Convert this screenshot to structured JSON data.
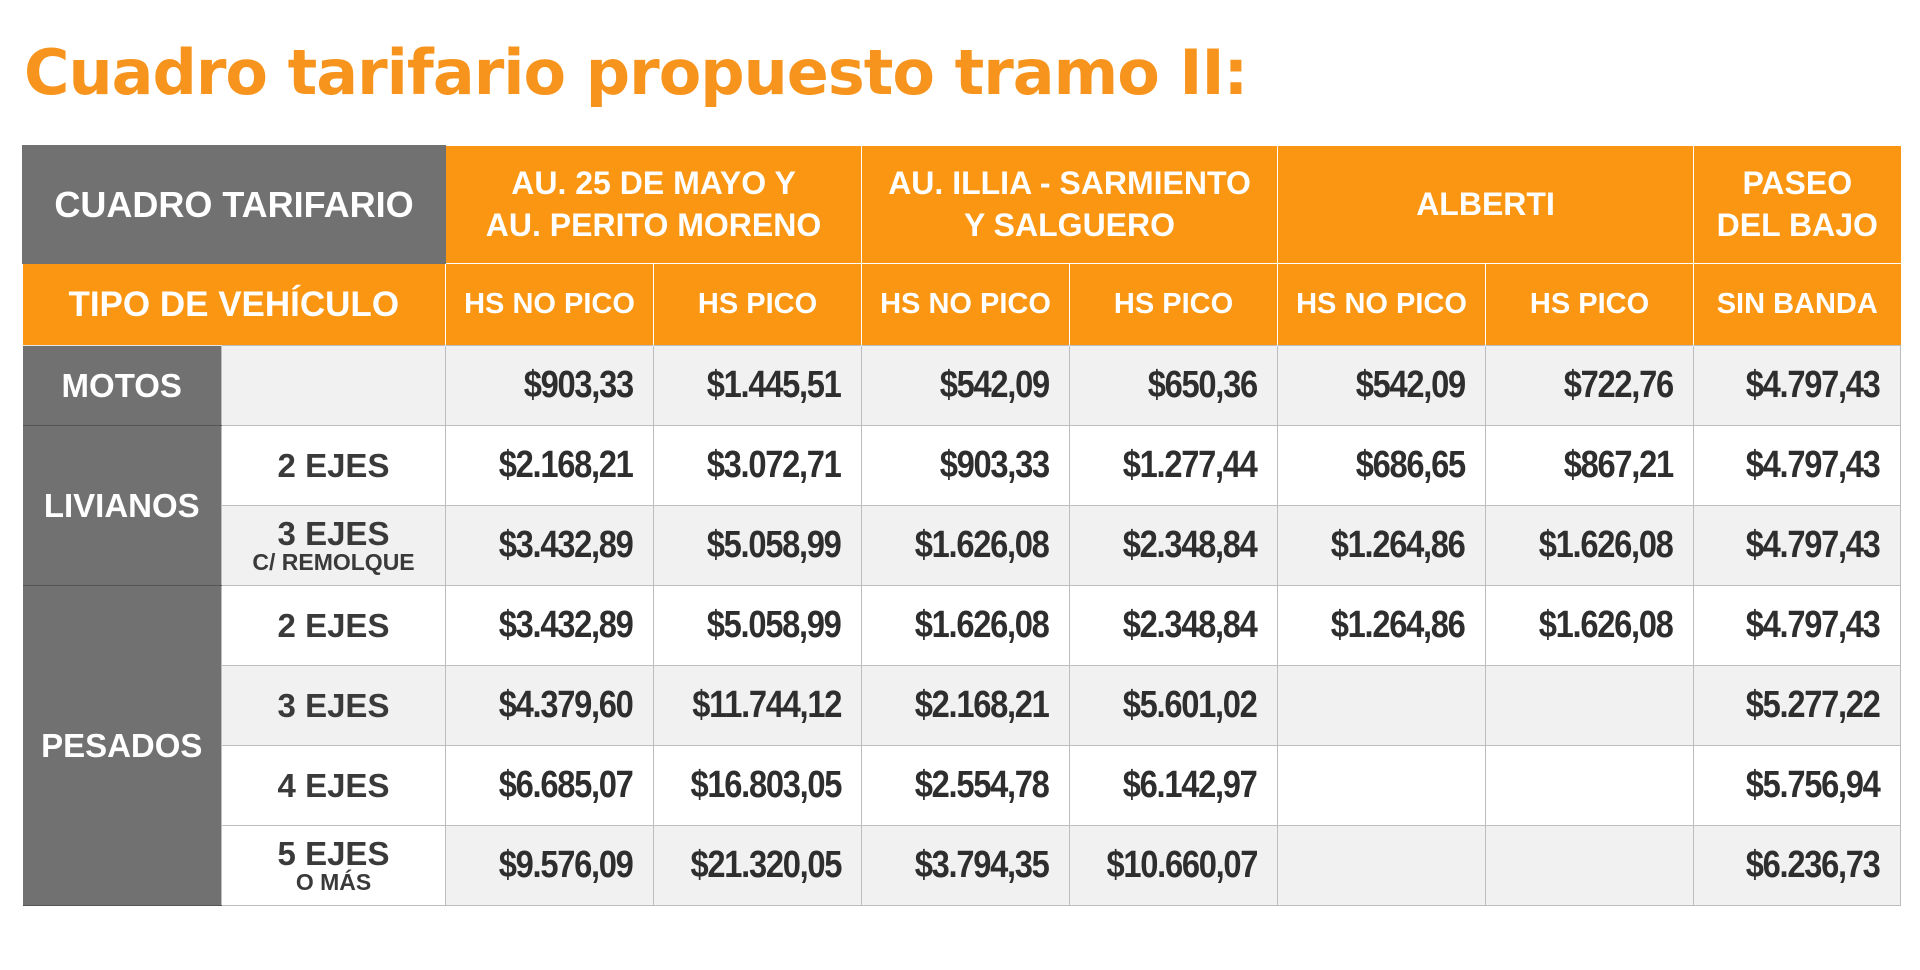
{
  "title": "Cuadro tarifario propuesto tramo II:",
  "header": {
    "main_label": "CUADRO TARIFARIO",
    "tipo_label": "TIPO DE VEHÍCULO",
    "routes": [
      {
        "line1": "AU. 25 DE MAYO Y",
        "line2": "AU. PERITO MORENO"
      },
      {
        "line1": "AU. ILLIA - SARMIENTO",
        "line2": "Y SALGUERO"
      },
      {
        "line1": "ALBERTI",
        "line2": ""
      },
      {
        "line1": "PASEO",
        "line2": "DEL BAJO"
      }
    ],
    "subheaders": [
      "HS NO PICO",
      "HS PICO",
      "HS NO PICO",
      "HS PICO",
      "HS NO PICO",
      "HS PICO",
      "SIN BANDA"
    ]
  },
  "categories": {
    "motos": "MOTOS",
    "livianos": "LIVIANOS",
    "pesados": "PESADOS"
  },
  "rows": [
    {
      "sub": "",
      "note": "",
      "values": [
        "$903,33",
        "$1.445,51",
        "$542,09",
        "$650,36",
        "$542,09",
        "$722,76",
        "$4.797,43"
      ]
    },
    {
      "sub": "2 EJES",
      "note": "",
      "values": [
        "$2.168,21",
        "$3.072,71",
        "$903,33",
        "$1.277,44",
        "$686,65",
        "$867,21",
        "$4.797,43"
      ]
    },
    {
      "sub": "3 EJES",
      "note": "C/ REMOLQUE",
      "values": [
        "$3.432,89",
        "$5.058,99",
        "$1.626,08",
        "$2.348,84",
        "$1.264,86",
        "$1.626,08",
        "$4.797,43"
      ]
    },
    {
      "sub": "2 EJES",
      "note": "",
      "values": [
        "$3.432,89",
        "$5.058,99",
        "$1.626,08",
        "$2.348,84",
        "$1.264,86",
        "$1.626,08",
        "$4.797,43"
      ]
    },
    {
      "sub": "3 EJES",
      "note": "",
      "values": [
        "$4.379,60",
        "$11.744,12",
        "$2.168,21",
        "$5.601,02",
        "",
        "",
        "$5.277,22"
      ]
    },
    {
      "sub": "4 EJES",
      "note": "",
      "values": [
        "$6.685,07",
        "$16.803,05",
        "$2.554,78",
        "$6.142,97",
        "",
        "",
        "$5.756,94"
      ]
    },
    {
      "sub": "5 EJES",
      "note": "O MÁS",
      "values": [
        "$9.576,09",
        "$21.320,05",
        "$3.794,35",
        "$10.660,07",
        "",
        "",
        "$6.236,73"
      ]
    }
  ],
  "colors": {
    "accent_orange": "#fb9612",
    "title_orange": "#f7941d",
    "header_gray": "#717171"
  }
}
